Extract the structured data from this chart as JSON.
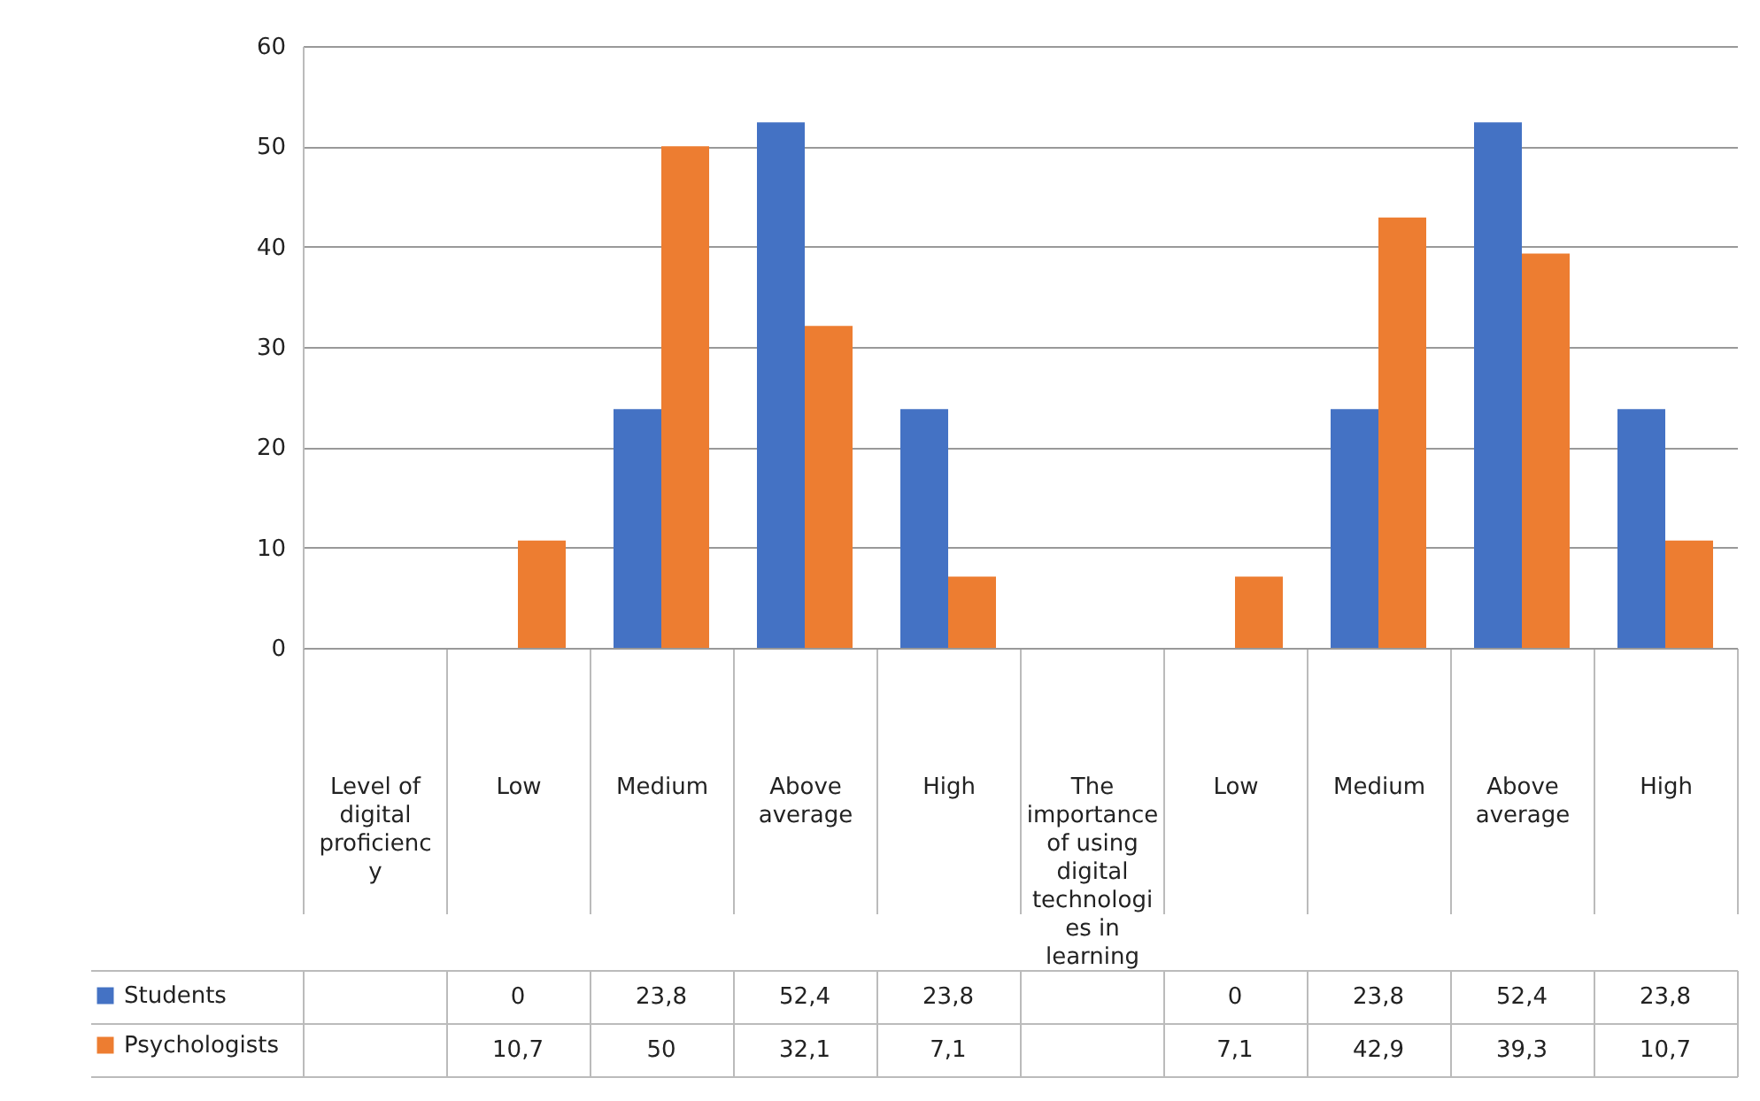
{
  "chart_data": {
    "type": "bar",
    "categories": [
      "Level of digital proficiency",
      "Low",
      "Medium",
      "Above average",
      "High",
      "The importance of using digital technologies in learning",
      "Low",
      "Medium",
      "Above average",
      "High"
    ],
    "series": [
      {
        "name": "Students",
        "color": "#4472c4",
        "values": [
          null,
          0,
          23.8,
          52.4,
          23.8,
          null,
          0,
          23.8,
          52.4,
          23.8
        ],
        "value_labels": [
          null,
          "0",
          "23,8",
          "52,4",
          "23,8",
          null,
          "0",
          "23,8",
          "52,4",
          "23,8"
        ]
      },
      {
        "name": "Psychologists",
        "color": "#ed7d31",
        "values": [
          null,
          10.7,
          50,
          32.1,
          7.1,
          null,
          7.1,
          42.9,
          39.3,
          10.7
        ],
        "value_labels": [
          null,
          "10,7",
          "50",
          "32,1",
          "7,1",
          null,
          "7,1",
          "42,9",
          "39,3",
          "10,7"
        ]
      }
    ],
    "ylim": [
      0,
      60
    ],
    "yticks": [
      0,
      10,
      20,
      30,
      40,
      50,
      60
    ],
    "grid": "y",
    "legend": "bottom left"
  }
}
